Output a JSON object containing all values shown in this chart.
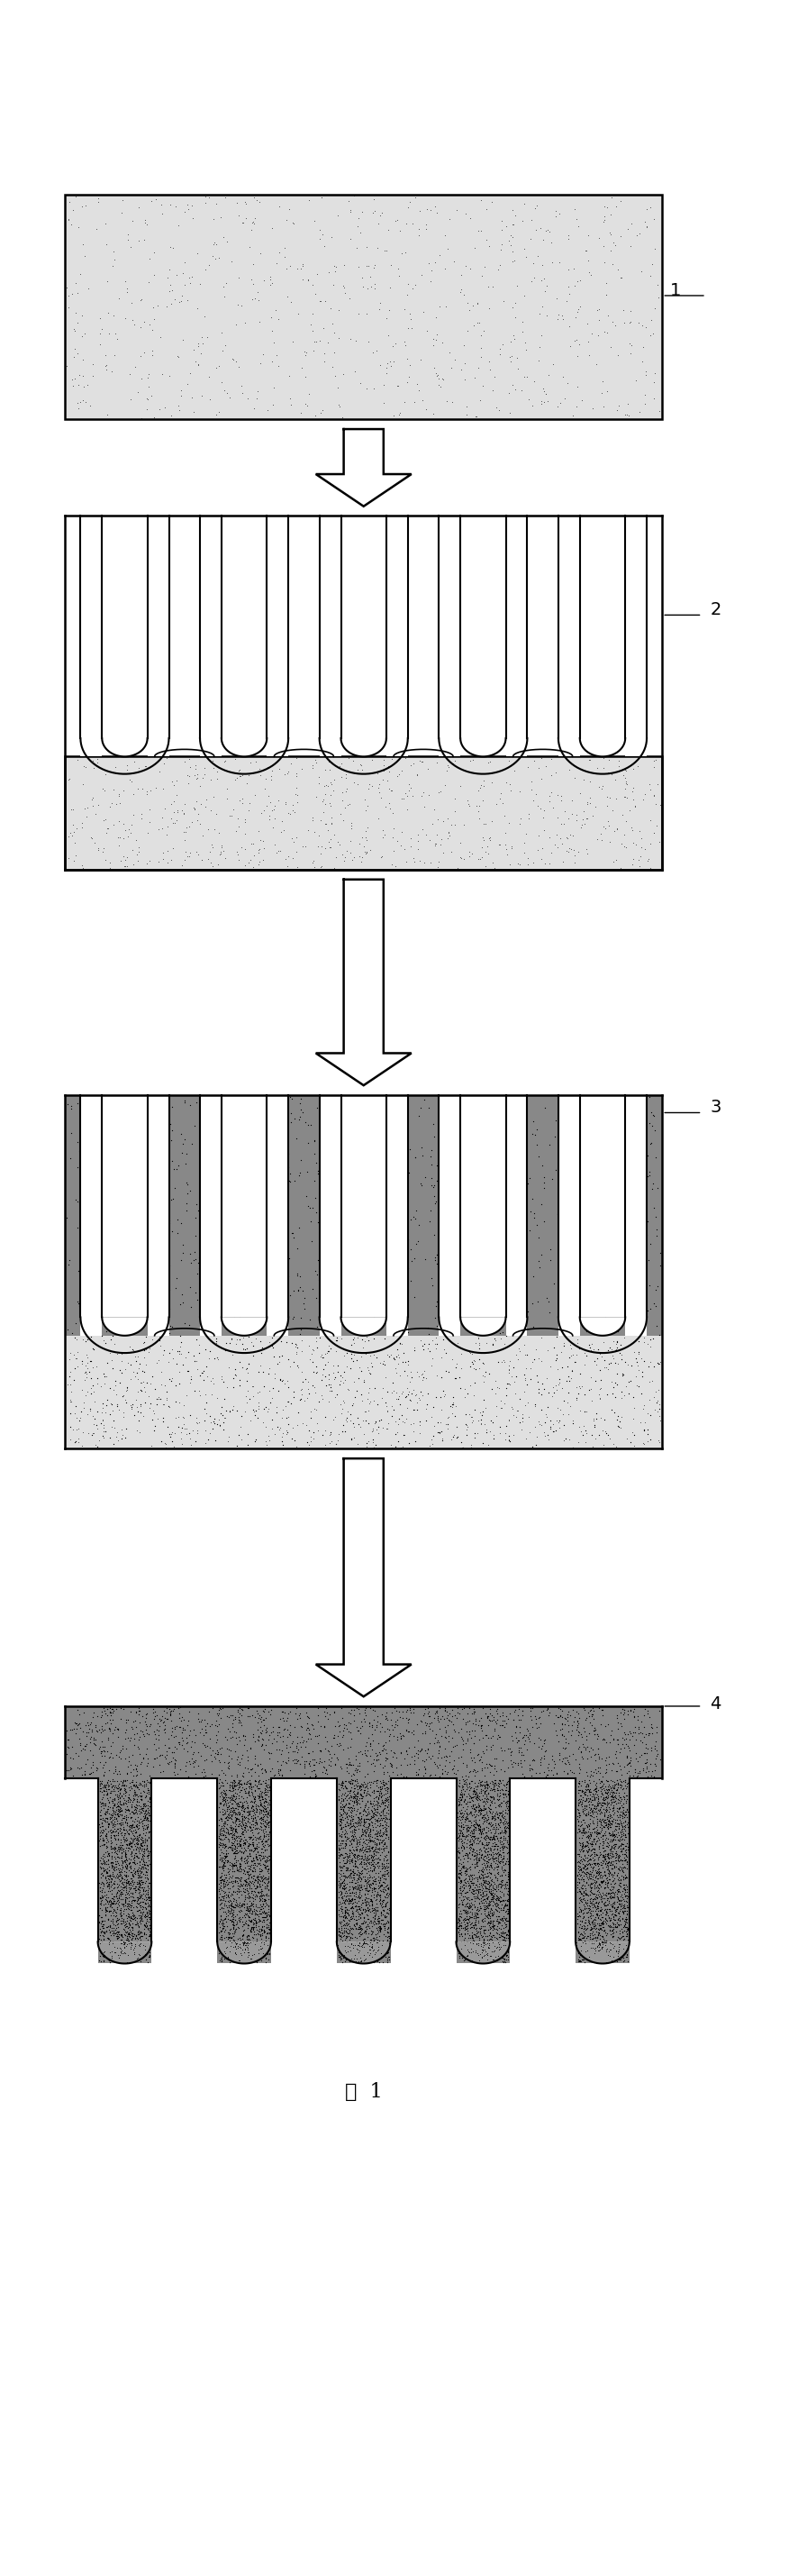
{
  "fig_width": 8.87,
  "fig_height": 28.58,
  "bg_color": "#ffffff",
  "light_stipple_color": "#d0d0d0",
  "dark_stipple_color": "#555555",
  "label_1": "1",
  "label_2": "2",
  "label_3": "3",
  "label_4": "4",
  "caption": "图  1",
  "num_fingers": 5,
  "outline_color": "#000000",
  "white_color": "#ffffff"
}
